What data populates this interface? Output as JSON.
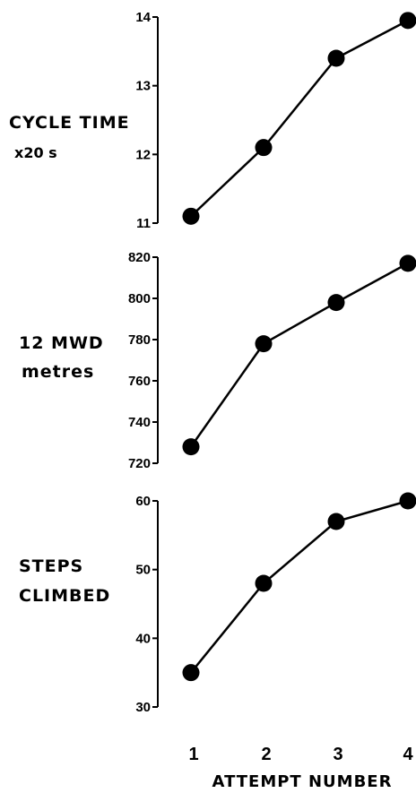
{
  "chart_data": [
    {
      "type": "line",
      "ylabel_lines": [
        "CYCLE TIME",
        "x20 s"
      ],
      "x": [
        1,
        2,
        3,
        4
      ],
      "values": [
        11.1,
        12.1,
        13.4,
        13.95
      ],
      "ylim": [
        11,
        14
      ],
      "yticks": [
        11,
        12,
        13,
        14
      ]
    },
    {
      "type": "line",
      "ylabel_lines": [
        "12 MWD",
        "metres"
      ],
      "x": [
        1,
        2,
        3,
        4
      ],
      "values": [
        728,
        778,
        798,
        817
      ],
      "ylim": [
        720,
        820
      ],
      "yticks": [
        720,
        740,
        760,
        780,
        800,
        820
      ]
    },
    {
      "type": "line",
      "ylabel_lines": [
        "STEPS",
        "CLIMBED"
      ],
      "x": [
        1,
        2,
        3,
        4
      ],
      "values": [
        35,
        48,
        57,
        60
      ],
      "ylim": [
        30,
        60
      ],
      "yticks": [
        30,
        40,
        50,
        60
      ]
    }
  ],
  "x_axis": {
    "label": "ATTEMPT NUMBER",
    "ticks": [
      "1",
      "2",
      "3",
      "4"
    ]
  }
}
